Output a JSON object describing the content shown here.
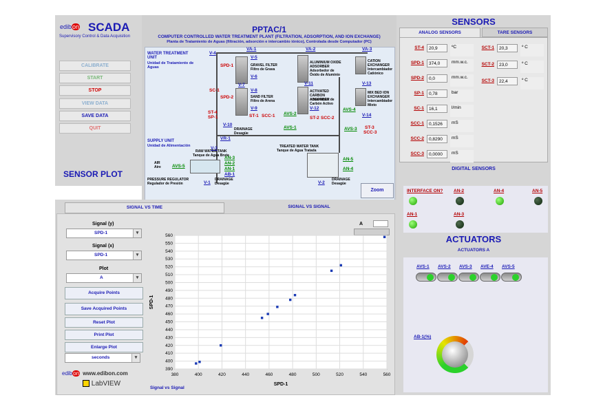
{
  "brand": {
    "logo_pre": "edib",
    "logo_on": "on",
    "title": "SCADA",
    "subtitle": "Supervisory Control & Data Acquisition",
    "web": "www.edibon.com",
    "labview": "LabVIEW"
  },
  "controls": [
    "CALIBRATE",
    "START",
    "STOP",
    "VIEW DATA",
    "SAVE DATA",
    "QUIT"
  ],
  "sensor_plot": {
    "title": "SENSOR PLOT",
    "tab_time": "SIGNAL VS TIME",
    "tab_signal": "SIGNAL VS SIGNAL",
    "signal_y_label": "Signal (y)",
    "signal_y": "SPD-1",
    "signal_x_label": "Signal (x)",
    "signal_x": "SPD-1",
    "plot_label": "Plot",
    "plot_value": "A",
    "acquire": "Acquire Points",
    "save_points": "Save Acquired Points",
    "reset": "Reset Plot",
    "print": "Print Plot",
    "enlarge": "Enlarge Plot",
    "time_unit": "seconds",
    "legend_a": "A",
    "footer": "Signal vs Signal",
    "xlabel": "SPD-1",
    "ylabel": "SPD-1"
  },
  "chart_data": {
    "type": "scatter",
    "xlim": [
      380,
      560
    ],
    "ylim": [
      390,
      560
    ],
    "xticks": [
      380,
      400,
      420,
      440,
      460,
      480,
      500,
      520,
      540,
      560
    ],
    "yticks": [
      390,
      400,
      410,
      420,
      430,
      440,
      450,
      460,
      470,
      480,
      490,
      500,
      510,
      520,
      530,
      540,
      550,
      560
    ],
    "x": [
      398,
      401,
      419,
      454,
      459,
      467,
      478,
      482,
      513,
      521,
      558
    ],
    "y": [
      397,
      399,
      420,
      455,
      460,
      469,
      478,
      484,
      515,
      522,
      558
    ],
    "xlabel": "SPD-1",
    "ylabel": "SPD-1"
  },
  "diagram": {
    "title": "PPTAC/1",
    "subtitle_en": "COMPUTER CONTROLLED WATER TREATMENT PLANT (FILTRATION, ADSORPTION, AND ION EXCHANGE)",
    "subtitle_es": "Planta de Tratamiento de Aguas (filtración, adsorción e intercambio iónico), Controlada desde Computador (PC)",
    "unit_en": "WATER TREATMENT UNIT",
    "unit_es": "Unidad de Tratamiento de Aguas",
    "supply_en": "SUPPLY UNIT",
    "supply_es": "Unidad de Alimentación",
    "zoom": "Zoom",
    "captions": {
      "gravel": "GRAVEL FILTER",
      "gravel_es": "Filtro de Grava",
      "sand": "SAND FILTER",
      "sand_es": "Filtro de Arena",
      "alox": "ALUMINIUM OXIDE ADSORBER",
      "alox_es": "Adsorbedor de Óxido de Aluminio",
      "carbon": "ACTIVATED CARBON ADSORBER",
      "carbon_es": "Adsorbedor de Carbón Activo",
      "cation": "CATION EXCHANGER",
      "cation_es": "Intercambiador Catiónico",
      "mixed": "MIX BED ION EXCHANGER",
      "mixed_es": "Intercambiador Mixto",
      "drainage": "DRAINAGE",
      "drainage_es": "Desagüe",
      "raw": "RAW WATER TANK",
      "raw_es": "Tanque de Agua Bruta",
      "treated": "TREATED WATER TANK",
      "treated_es": "Tanque de Agua Tratada",
      "regulator": "PRESSURE REGULATOR",
      "regulator_es": "Regulador de Presión",
      "air": "AIR",
      "air_es": "Aire"
    },
    "tags": [
      "VA-1",
      "VA-2",
      "VA-3",
      "V-4",
      "V-5",
      "V-6",
      "V-7",
      "V-8",
      "V-9",
      "V-10",
      "V-11",
      "V-12",
      "V-13",
      "V-14",
      "SPD-1",
      "SPD-2",
      "SC-1",
      "ST-4",
      "SP-1",
      "ST-1",
      "SCC-1",
      "AVS-2",
      "AVS-4",
      "AVS-1",
      "ST-2",
      "SCC-2",
      "AVS-3",
      "ST-3",
      "SCC-3",
      "VR-1",
      "V-3",
      "AN-3",
      "AN-2",
      "AN-1",
      "AB-1",
      "AVS-5",
      "V-1",
      "AN-5",
      "AN-4",
      "V-2"
    ]
  },
  "sensors": {
    "title": "SENSORS",
    "tab_analog": "ANALOG SENSORS",
    "tab_tare": "TARE SENSORS",
    "analog": [
      {
        "name": "ST-4",
        "value": "20,9",
        "unit": "ºC"
      },
      {
        "name": "SPD-1",
        "value": "374,0",
        "unit": "mm.w.c."
      },
      {
        "name": "SPD-2",
        "value": "0,0",
        "unit": "mm.w.c."
      },
      {
        "name": "SP-1",
        "value": "0,78",
        "unit": "bar"
      },
      {
        "name": "SC-1",
        "value": "16,1",
        "unit": "l/min"
      },
      {
        "name": "SCC-1",
        "value": "0,1526",
        "unit": "mS"
      },
      {
        "name": "SCC-2",
        "value": "0,8290",
        "unit": "mS"
      },
      {
        "name": "SCC-3",
        "value": "0,0000",
        "unit": "mS"
      }
    ],
    "temps": [
      {
        "name": "SCT-1",
        "value": "20,3",
        "unit": "º C"
      },
      {
        "name": "SCT-2",
        "value": "23,0",
        "unit": "º C"
      },
      {
        "name": "SCT-3",
        "value": "22,4",
        "unit": "º C"
      }
    ]
  },
  "digital": {
    "title": "DIGITAL SENSORS",
    "items": [
      {
        "name": "INTERFACE ON?",
        "on": true
      },
      {
        "name": "AN-2",
        "on": false
      },
      {
        "name": "AN-4",
        "on": true
      },
      {
        "name": "AN-5",
        "on": false
      },
      {
        "name": "AN-1",
        "on": true
      },
      {
        "name": "AN-3",
        "on": false
      }
    ]
  },
  "actuators": {
    "title": "ACTUATORS",
    "subtitle": "ACTUATORS A",
    "items": [
      "AVS-1",
      "AVS-2",
      "AVS-3",
      "AVE-4",
      "AVS-5"
    ],
    "ab_label": "AB-1(%)"
  }
}
